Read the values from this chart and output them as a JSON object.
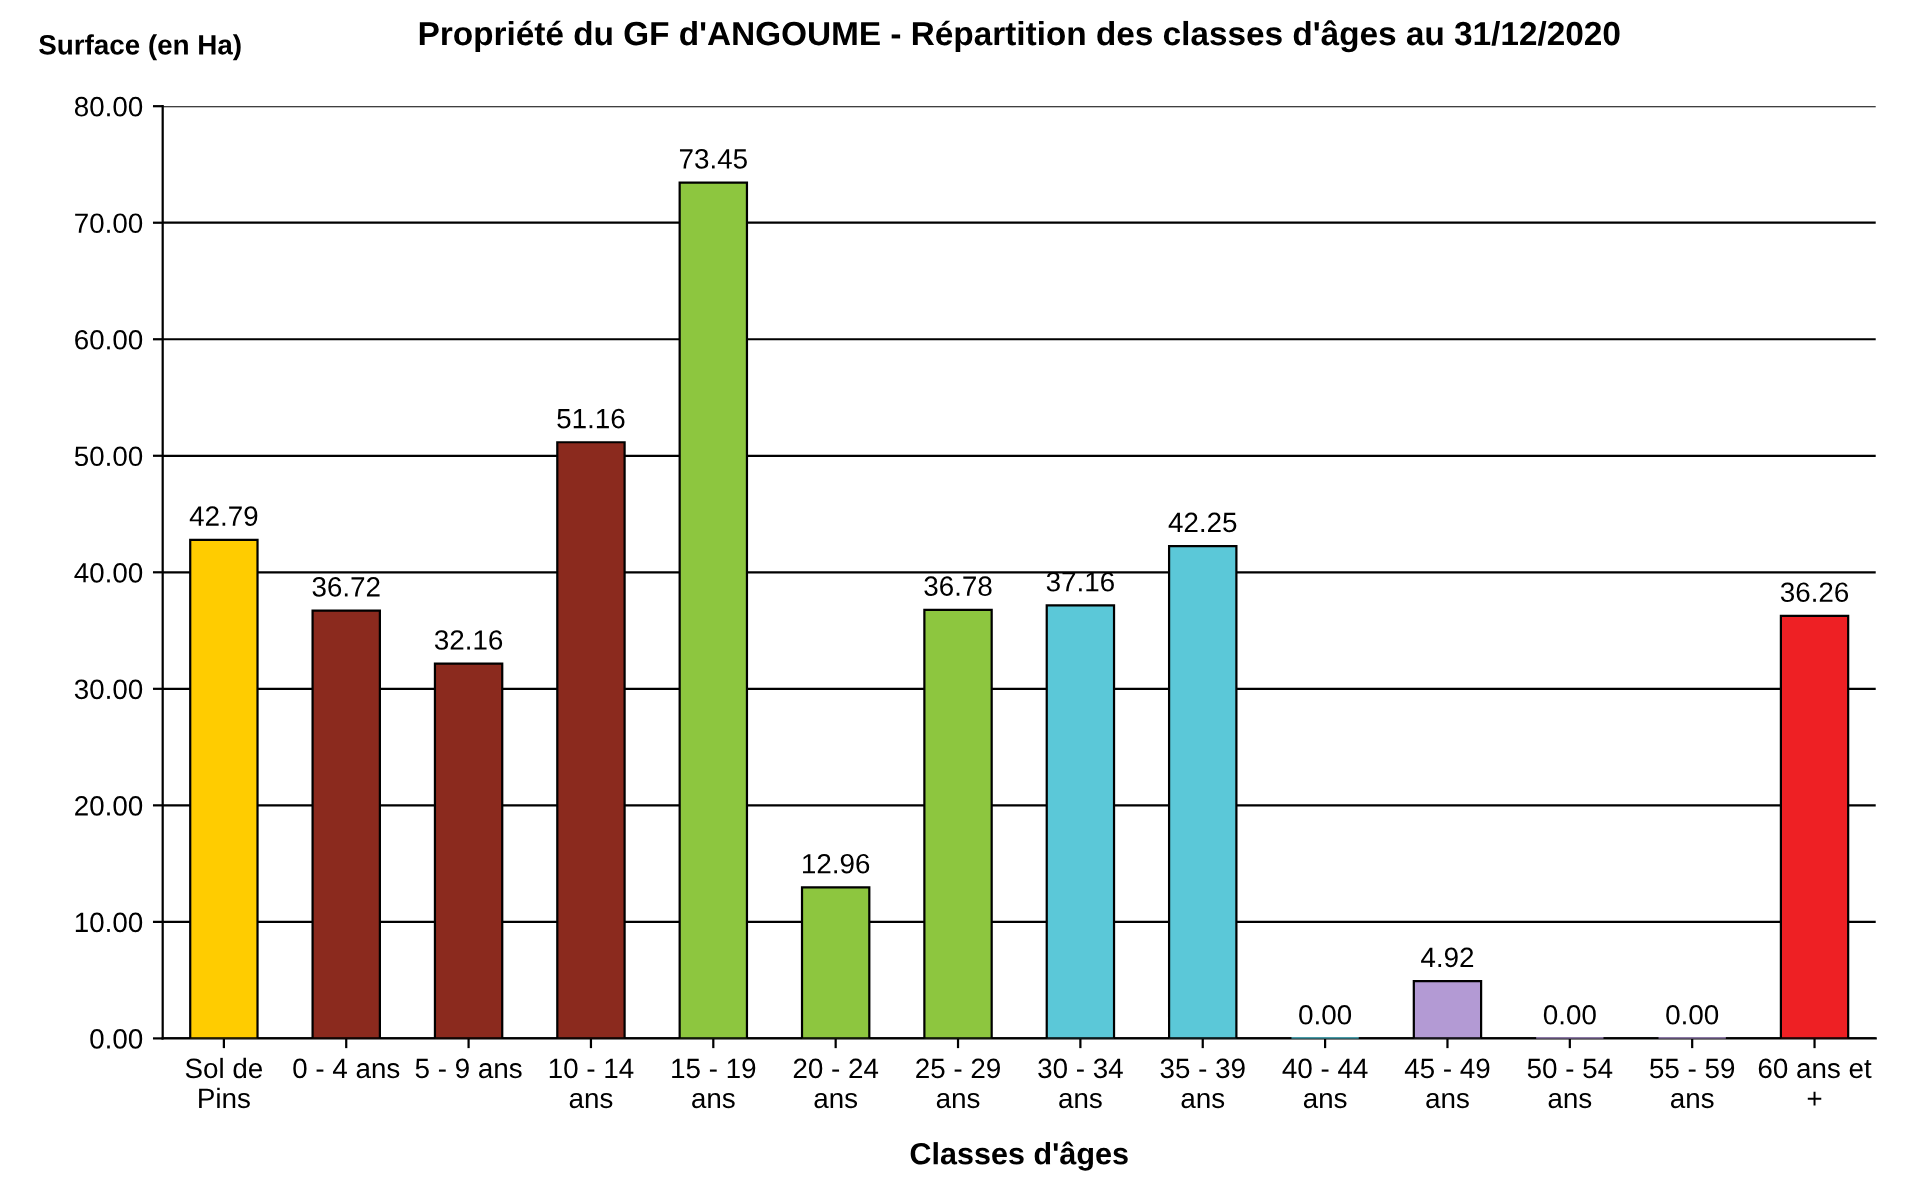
{
  "chart_data": {
    "type": "bar",
    "title": "Propriété du GF d'ANGOUME - Répartition des classes d'âges au 31/12/2020",
    "xlabel": "Classes d'âges",
    "ylabel": "Surface (en Ha)",
    "categories": [
      "Sol de Pins",
      "0 - 4 ans",
      "5 - 9 ans",
      "10 - 14 ans",
      "15 - 19 ans",
      "20 - 24 ans",
      "25 - 29 ans",
      "30 - 34 ans",
      "35 - 39 ans",
      "40 - 44 ans",
      "45 - 49 ans",
      "50 - 54 ans",
      "55 - 59 ans",
      "60 ans et +"
    ],
    "values": [
      42.79,
      36.72,
      32.16,
      51.16,
      73.45,
      12.96,
      36.78,
      37.16,
      42.25,
      0.0,
      4.92,
      0.0,
      0.0,
      36.26
    ],
    "value_labels": [
      "42.79",
      "36.72",
      "32.16",
      "51.16",
      "73.45",
      "12.96",
      "36.78",
      "37.16",
      "42.25",
      "0.00",
      "4.92",
      "0.00",
      "0.00",
      "36.26"
    ],
    "colors": [
      "#ffcc00",
      "#8b2a1e",
      "#8b2a1e",
      "#8b2a1e",
      "#8dc63f",
      "#8dc63f",
      "#8dc63f",
      "#5bc8d8",
      "#5bc8d8",
      "#5bc8d8",
      "#b39ad4",
      "#b39ad4",
      "#b39ad4",
      "#ee2024"
    ],
    "ylim": [
      0,
      80
    ],
    "yticks": [
      {
        "value": 0,
        "label": "0.00"
      },
      {
        "value": 10,
        "label": "10.00"
      },
      {
        "value": 20,
        "label": "20.00"
      },
      {
        "value": 30,
        "label": "30.00"
      },
      {
        "value": 40,
        "label": "40.00"
      },
      {
        "value": 50,
        "label": "50.00"
      },
      {
        "value": 60,
        "label": "60.00"
      },
      {
        "value": 70,
        "label": "70.00"
      },
      {
        "value": 80,
        "label": "80.00"
      }
    ],
    "grid": "y"
  }
}
